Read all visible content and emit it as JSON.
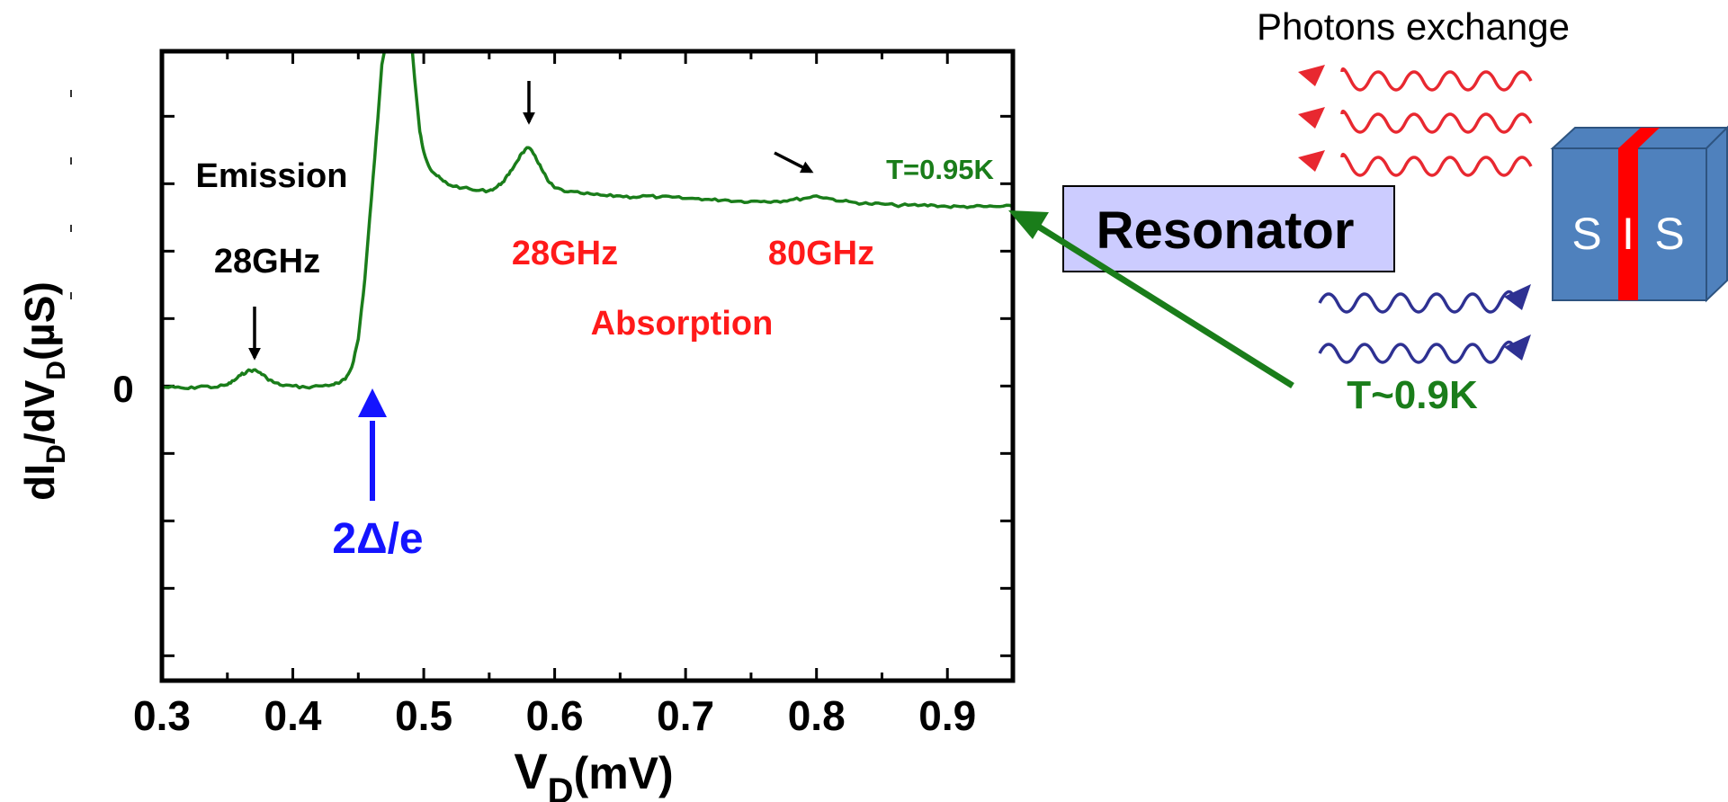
{
  "chart_data": {
    "type": "line",
    "xlabel": "V",
    "xlabel_sub": "D",
    "xlabel_unit": "(mV)",
    "ylabel_parts": [
      "dI",
      "D",
      "/dV",
      "D",
      "(µS)"
    ],
    "xlim": [
      0.3,
      0.95
    ],
    "ylim": [
      -2.2,
      2.5
    ],
    "x_ticks": [
      "0.3",
      "0.4",
      "0.5",
      "0.6",
      "0.7",
      "0.8",
      "0.9"
    ],
    "y_tick_label": "0",
    "series": [
      {
        "name": "T=0.95K",
        "color": "#1a7d1a",
        "x": [
          0.3,
          0.31,
          0.32,
          0.33,
          0.34,
          0.35,
          0.355,
          0.36,
          0.365,
          0.37,
          0.375,
          0.38,
          0.385,
          0.39,
          0.4,
          0.41,
          0.42,
          0.43,
          0.435,
          0.44,
          0.445,
          0.45,
          0.455,
          0.46,
          0.465,
          0.468,
          0.47,
          0.4735,
          0.4908,
          0.4913,
          0.493,
          0.497,
          0.5,
          0.505,
          0.51,
          0.515,
          0.52,
          0.53,
          0.54,
          0.55,
          0.555,
          0.56,
          0.565,
          0.57,
          0.575,
          0.58,
          0.585,
          0.59,
          0.595,
          0.6,
          0.61,
          0.62,
          0.63,
          0.64,
          0.65,
          0.66,
          0.67,
          0.68,
          0.69,
          0.7,
          0.71,
          0.72,
          0.73,
          0.74,
          0.75,
          0.76,
          0.77,
          0.78,
          0.79,
          0.8,
          0.81,
          0.82,
          0.83,
          0.84,
          0.85,
          0.86,
          0.87,
          0.88,
          0.89,
          0.9,
          0.91,
          0.92,
          0.93,
          0.94,
          0.95
        ],
        "y": [
          -0.01,
          -0.01,
          -0.02,
          0.0,
          -0.01,
          0.01,
          0.04,
          0.08,
          0.11,
          0.12,
          0.1,
          0.06,
          0.03,
          0.01,
          0.0,
          -0.01,
          0.0,
          0.01,
          0.02,
          0.05,
          0.14,
          0.35,
          0.8,
          1.4,
          2.0,
          2.4,
          2.7,
          2.5,
          2.5,
          2.7,
          2.3,
          1.9,
          1.75,
          1.62,
          1.57,
          1.53,
          1.5,
          1.48,
          1.46,
          1.46,
          1.48,
          1.52,
          1.58,
          1.66,
          1.74,
          1.78,
          1.72,
          1.62,
          1.53,
          1.48,
          1.45,
          1.44,
          1.43,
          1.42,
          1.42,
          1.41,
          1.42,
          1.41,
          1.41,
          1.4,
          1.4,
          1.39,
          1.39,
          1.38,
          1.38,
          1.38,
          1.38,
          1.39,
          1.4,
          1.42,
          1.4,
          1.38,
          1.37,
          1.36,
          1.36,
          1.35,
          1.35,
          1.35,
          1.35,
          1.34,
          1.34,
          1.34,
          1.34,
          1.34,
          1.34
        ]
      }
    ],
    "grid": false,
    "annotations": {
      "emission": "Emission",
      "emission_freq": "28GHz",
      "abs_freq_1": "28GHz",
      "abs_freq_2": "80GHz",
      "absorption": "Absorption",
      "gap_label": "2Δ/e",
      "temp_curve": "T=0.95K"
    },
    "colors": {
      "curve": "#1a7d1a",
      "emission_text": "#000000",
      "absorption_text": "#ff1a1a",
      "gap_arrow": "#1414ff",
      "wave_red": "#e82830",
      "wave_blue": "#2e3192",
      "resonator_fill": "#ccccff",
      "junction_blue": "#4f81bd",
      "junction_red": "#ff0000"
    }
  },
  "diagram": {
    "title": "Photons exchange",
    "resonator_label": "Resonator",
    "temperature_label": "T~0.9K",
    "junction_labels": [
      "S",
      "I",
      "S"
    ]
  }
}
